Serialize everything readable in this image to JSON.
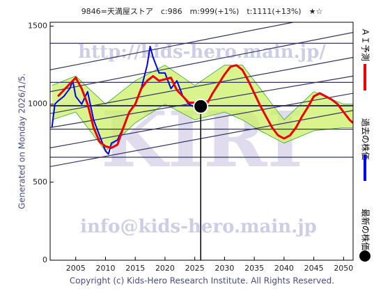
{
  "chart_data": {
    "type": "line",
    "title": "9846=天満屋ストア　c:986　m:999(+1%)　t:1111(+13%)　★☆",
    "side_label": "Generated on Monday 2026/1/5.",
    "footer": "Copyright (c) Kids-Hero Research Institute. All Rights Reserved.",
    "watermarks": [
      "http://kids-hero.main.jp/",
      "KIRI",
      "info@kids-hero.main.jp"
    ],
    "xlim": [
      2000.7,
      2051.6
    ],
    "xticks": [
      2005,
      2010,
      2015,
      2020,
      2025,
      2030,
      2035,
      2040,
      2045,
      2050
    ],
    "ylim": [
      0,
      1525
    ],
    "yticks": [
      0,
      500,
      1000,
      1500
    ],
    "series": [
      {
        "name": "過去の株価",
        "color": "#0000ee",
        "x": [
          2001.0,
          2001.5,
          2002,
          2003,
          2004,
          2004.5,
          2005,
          2006,
          2007,
          2008,
          2009,
          2010,
          2010.5,
          2011,
          2012,
          2013,
          2014,
          2015,
          2016,
          2017,
          2017.5,
          2018,
          2018.5,
          2019,
          2020,
          2020.5,
          2021,
          2022,
          2023,
          2024,
          2025,
          2025.5
        ],
        "values": [
          850,
          1000,
          1020,
          1050,
          1100,
          1150,
          1050,
          1000,
          1080,
          900,
          800,
          700,
          680,
          750,
          770,
          850,
          950,
          1000,
          1100,
          1250,
          1370,
          1300,
          1250,
          1200,
          1200,
          1150,
          1100,
          1150,
          1050,
          1000,
          980,
          990
        ]
      },
      {
        "name": "ＡＩ予測",
        "color": "#ee0000",
        "x": [
          2002,
          2004,
          2005,
          2006,
          2007,
          2008,
          2009,
          2010,
          2011,
          2012,
          2013,
          2014,
          2015,
          2016,
          2017,
          2018,
          2019,
          2020,
          2021,
          2022,
          2023,
          2024,
          2025,
          2026,
          2027,
          2028,
          2029,
          2030,
          2031,
          2032,
          2033,
          2034,
          2035,
          2036,
          2037,
          2038,
          2039,
          2040,
          2041,
          2042,
          2043,
          2044,
          2045,
          2046,
          2047,
          2048,
          2049,
          2050,
          2051,
          2051.6
        ],
        "values": [
          1050,
          1130,
          1170,
          1100,
          1000,
          850,
          760,
          730,
          720,
          740,
          850,
          950,
          1000,
          1100,
          1150,
          1180,
          1150,
          1160,
          1170,
          1090,
          1050,
          1010,
          1010,
          1000,
          1000,
          1070,
          1130,
          1190,
          1240,
          1250,
          1220,
          1150,
          1070,
          990,
          920,
          850,
          800,
          780,
          800,
          850,
          920,
          980,
          1050,
          1070,
          1050,
          1030,
          1000,
          950,
          900,
          880
        ]
      }
    ],
    "latest": {
      "name": "最新の株価",
      "color": "#000000",
      "x": 2026.0,
      "value": 986
    },
    "band": {
      "color": "#ccf066",
      "line_color": "#33aa33",
      "x": [
        2001,
        2005,
        2010,
        2015,
        2020,
        2025,
        2030,
        2033,
        2036,
        2040,
        2045,
        2050,
        2051.6
      ],
      "upper": [
        1120,
        1180,
        1000,
        1150,
        1250,
        1120,
        1250,
        1250,
        1100,
        900,
        1080,
        1000,
        1000
      ],
      "lower": [
        900,
        950,
        700,
        880,
        1000,
        900,
        950,
        900,
        830,
        750,
        830,
        850,
        850
      ]
    },
    "levels": {
      "color": "#333366",
      "values": [
        1390,
        1140,
        990,
        840,
        660
      ]
    },
    "trend_lines": {
      "color": "#333366",
      "x": [
        2000.7,
        2051.6
      ],
      "lines": [
        [
          1220,
          1600
        ],
        [
          1080,
          1460
        ],
        [
          940,
          1300
        ],
        [
          850,
          1180
        ],
        [
          720,
          1070
        ],
        [
          600,
          960
        ]
      ]
    }
  }
}
